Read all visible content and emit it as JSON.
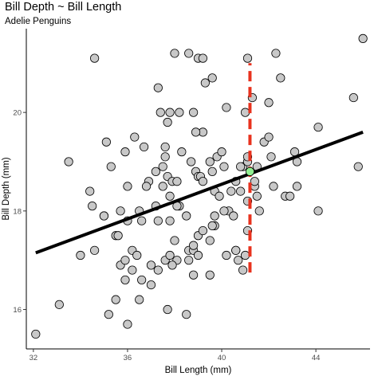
{
  "chart_data": {
    "type": "scatter",
    "title": "Bill Depth ~ Bill Length",
    "subtitle": "Adelie Penguins",
    "xlabel": "Bill Length (mm)",
    "ylabel": "Bill Depth (mm)",
    "xlim": [
      31.7,
      46.3
    ],
    "ylim": [
      15.2,
      21.7
    ],
    "x_ticks": [
      32,
      36,
      40,
      44
    ],
    "y_ticks": [
      16,
      18,
      20
    ],
    "grid": false,
    "legend": "none",
    "colors": {
      "point_fill": "#c8c8c8",
      "point_stroke": "#000000",
      "fit_line": "#000000",
      "marker_line": "#e8321e",
      "highlight_point": "#90ee90"
    },
    "fit_line": {
      "x": [
        32.1,
        46.0
      ],
      "y": [
        17.15,
        19.6
      ]
    },
    "vertical_line": {
      "x": 41.2,
      "y": [
        16.75,
        21.0
      ]
    },
    "highlight_point": {
      "x": 41.2,
      "y": 18.8
    },
    "points": [
      [
        32.1,
        15.5
      ],
      [
        33.1,
        16.1
      ],
      [
        33.5,
        19.0
      ],
      [
        34.0,
        17.1
      ],
      [
        34.4,
        18.4
      ],
      [
        34.5,
        18.1
      ],
      [
        34.6,
        21.1
      ],
      [
        34.6,
        17.2
      ],
      [
        35.0,
        17.9
      ],
      [
        35.1,
        19.4
      ],
      [
        35.3,
        18.9
      ],
      [
        35.5,
        17.5
      ],
      [
        35.6,
        17.5
      ],
      [
        35.7,
        18.0
      ],
      [
        35.9,
        19.2
      ],
      [
        35.2,
        15.9
      ],
      [
        35.5,
        16.2
      ],
      [
        35.7,
        16.9
      ],
      [
        35.9,
        16.6
      ],
      [
        35.9,
        17.0
      ],
      [
        36.0,
        17.8
      ],
      [
        36.0,
        18.5
      ],
      [
        36.2,
        16.8
      ],
      [
        36.2,
        17.2
      ],
      [
        36.4,
        17.1
      ],
      [
        36.5,
        18.0
      ],
      [
        36.6,
        17.8
      ],
      [
        36.7,
        19.3
      ],
      [
        36.6,
        16.6
      ],
      [
        37.0,
        16.9
      ],
      [
        37.0,
        16.5
      ],
      [
        37.2,
        18.1
      ],
      [
        37.3,
        17.8
      ],
      [
        37.3,
        20.5
      ],
      [
        37.5,
        18.9
      ],
      [
        37.5,
        18.5
      ],
      [
        37.6,
        19.1
      ],
      [
        37.6,
        17.0
      ],
      [
        37.7,
        18.7
      ],
      [
        37.8,
        18.3
      ],
      [
        37.9,
        18.6
      ],
      [
        37.7,
        16.0
      ],
      [
        37.8,
        17.1
      ],
      [
        37.2,
        18.8
      ],
      [
        36.9,
        18.6
      ],
      [
        37.8,
        20.0
      ],
      [
        38.1,
        18.6
      ],
      [
        38.1,
        17.0
      ],
      [
        38.2,
        18.1
      ],
      [
        38.2,
        20.0
      ],
      [
        38.3,
        19.2
      ],
      [
        38.5,
        17.9
      ],
      [
        38.6,
        17.2
      ],
      [
        38.6,
        21.2
      ],
      [
        38.7,
        19.0
      ],
      [
        38.8,
        17.2
      ],
      [
        38.8,
        20.0
      ],
      [
        38.9,
        18.8
      ],
      [
        39.0,
        17.5
      ],
      [
        39.0,
        18.7
      ],
      [
        39.1,
        18.7
      ],
      [
        39.2,
        19.6
      ],
      [
        39.2,
        18.6
      ],
      [
        39.3,
        20.6
      ],
      [
        39.5,
        17.4
      ],
      [
        39.5,
        16.7
      ],
      [
        39.6,
        18.8
      ],
      [
        39.7,
        18.4
      ],
      [
        39.8,
        19.1
      ],
      [
        40.1,
        18.9
      ],
      [
        40.2,
        17.1
      ],
      [
        40.3,
        18.0
      ],
      [
        40.5,
        17.9
      ],
      [
        40.6,
        18.6
      ],
      [
        40.8,
        18.4
      ],
      [
        40.9,
        18.9
      ],
      [
        41.1,
        17.6
      ],
      [
        41.1,
        18.2
      ],
      [
        41.1,
        19.0
      ],
      [
        41.3,
        20.3
      ],
      [
        41.4,
        18.5
      ],
      [
        41.5,
        18.3
      ],
      [
        41.6,
        18.0
      ],
      [
        41.8,
        19.4
      ],
      [
        42.0,
        20.2
      ],
      [
        42.1,
        19.1
      ],
      [
        42.2,
        18.5
      ],
      [
        42.3,
        21.2
      ],
      [
        42.5,
        20.7
      ],
      [
        42.7,
        18.3
      ],
      [
        43.1,
        19.2
      ],
      [
        43.2,
        18.5
      ],
      [
        44.1,
        18.0
      ],
      [
        44.1,
        19.7
      ],
      [
        45.6,
        20.3
      ],
      [
        45.8,
        18.9
      ],
      [
        46.0,
        21.5
      ],
      [
        39.0,
        21.1
      ],
      [
        38.0,
        21.2
      ],
      [
        39.6,
        20.7
      ],
      [
        36.3,
        19.5
      ],
      [
        37.4,
        20.0
      ],
      [
        38.8,
        16.7
      ],
      [
        40.6,
        17.2
      ],
      [
        40.7,
        17.0
      ],
      [
        39.7,
        17.7
      ],
      [
        40.2,
        20.1
      ],
      [
        41.0,
        20.0
      ],
      [
        42.0,
        19.5
      ],
      [
        41.1,
        21.1
      ],
      [
        40.9,
        16.8
      ],
      [
        41.4,
        18.6
      ],
      [
        39.0,
        17.1
      ],
      [
        36.8,
        18.5
      ],
      [
        37.6,
        19.3
      ],
      [
        38.6,
        17.0
      ],
      [
        39.6,
        17.7
      ],
      [
        40.8,
        18.9
      ],
      [
        35.0,
        17.9
      ],
      [
        38.1,
        18.1
      ],
      [
        39.2,
        21.1
      ],
      [
        36.0,
        15.7
      ],
      [
        37.9,
        16.9
      ],
      [
        38.8,
        17.3
      ],
      [
        39.5,
        19.0
      ],
      [
        40.1,
        18.0
      ],
      [
        38.0,
        17.4
      ],
      [
        37.8,
        17.8
      ],
      [
        39.2,
        17.6
      ],
      [
        39.7,
        17.9
      ],
      [
        37.3,
        16.8
      ],
      [
        36.5,
        16.2
      ],
      [
        38.5,
        15.9
      ],
      [
        41.0,
        17.1
      ],
      [
        40.4,
        18.4
      ],
      [
        41.1,
        19.1
      ],
      [
        40.6,
        17.2
      ],
      [
        42.9,
        18.3
      ],
      [
        38.9,
        19.6
      ],
      [
        37.7,
        19.8
      ],
      [
        39.9,
        18.3
      ],
      [
        40.0,
        19.2
      ],
      [
        43.2,
        19.0
      ],
      [
        41.5,
        18.9
      ]
    ]
  }
}
